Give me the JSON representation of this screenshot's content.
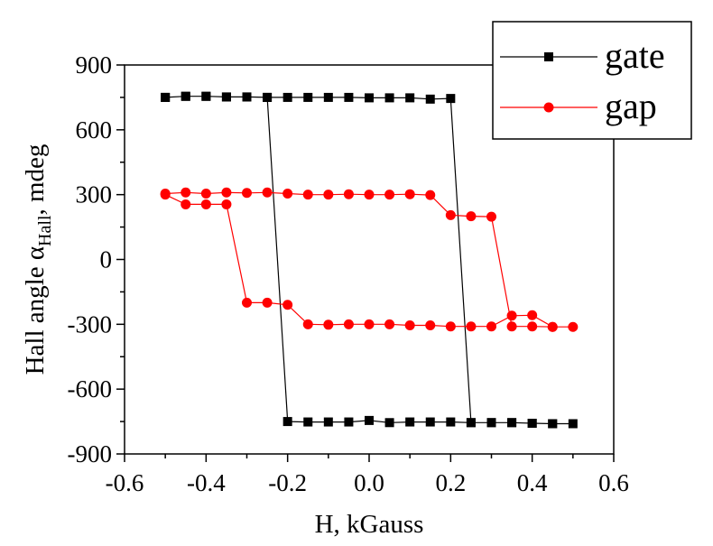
{
  "chart_data": {
    "type": "scatter",
    "xlabel": "H, kGauss",
    "ylabel_main": "Hall angle α",
    "ylabel_sub": "Hall",
    "ylabel_tail": ", mdeg",
    "xlim": [
      -0.6,
      0.6
    ],
    "ylim": [
      -900,
      900
    ],
    "xticks": [
      -0.6,
      -0.4,
      -0.2,
      0.0,
      0.2,
      0.4,
      0.6
    ],
    "yticks": [
      -900,
      -600,
      -300,
      0,
      300,
      600,
      900
    ],
    "xtick_labels": [
      "-0.6",
      "-0.4",
      "-0.2",
      "0.0",
      "0.2",
      "0.4",
      "0.6"
    ],
    "ytick_labels": [
      "-900",
      "-600",
      "-300",
      "0",
      "300",
      "600",
      "900"
    ],
    "legend_position": "top-right",
    "grid": false,
    "series": [
      {
        "name": "gate",
        "color": "#000000",
        "marker": "square",
        "x": [
          -0.5,
          -0.45,
          -0.4,
          -0.35,
          -0.3,
          -0.25,
          -0.2,
          -0.15,
          -0.1,
          -0.05,
          0.0,
          0.05,
          0.1,
          0.15,
          0.2,
          0.25,
          0.3,
          0.35,
          0.4,
          0.45,
          0.5,
          0.45,
          0.4,
          0.35,
          0.3,
          0.25,
          0.2,
          0.15,
          0.1,
          0.05,
          0.0,
          -0.05,
          -0.1,
          -0.15,
          -0.2,
          -0.25,
          -0.3,
          -0.35,
          -0.4,
          -0.45,
          -0.5
        ],
        "y": [
          750,
          755,
          755,
          752,
          752,
          750,
          750,
          750,
          750,
          750,
          748,
          748,
          748,
          742,
          745,
          -755,
          -755,
          -755,
          -758,
          -760,
          -760,
          -760,
          -758,
          -755,
          -755,
          -755,
          -752,
          -752,
          -752,
          -755,
          -745,
          -752,
          -752,
          -752,
          -750,
          750,
          752,
          752,
          755,
          755,
          750
        ]
      },
      {
        "name": "gap",
        "color": "#ff0000",
        "marker": "circle",
        "x": [
          -0.5,
          -0.45,
          -0.4,
          -0.35,
          -0.3,
          -0.25,
          -0.2,
          -0.15,
          -0.1,
          -0.05,
          0.0,
          0.05,
          0.1,
          0.15,
          0.2,
          0.25,
          0.3,
          0.35,
          0.4,
          0.45,
          0.5,
          0.45,
          0.4,
          0.35,
          0.3,
          0.25,
          0.2,
          0.15,
          0.1,
          0.05,
          0.0,
          -0.05,
          -0.1,
          -0.15,
          -0.2,
          -0.25,
          -0.3,
          -0.35,
          -0.4,
          -0.45,
          -0.5
        ],
        "y": [
          305,
          310,
          305,
          310,
          308,
          310,
          305,
          300,
          300,
          302,
          300,
          300,
          302,
          298,
          205,
          200,
          198,
          -310,
          -310,
          -312,
          -312,
          -312,
          -258,
          -260,
          -310,
          -310,
          -310,
          -305,
          -305,
          -300,
          -300,
          -300,
          -302,
          -300,
          -210,
          -200,
          -200,
          255,
          255,
          255,
          300
        ]
      }
    ]
  }
}
